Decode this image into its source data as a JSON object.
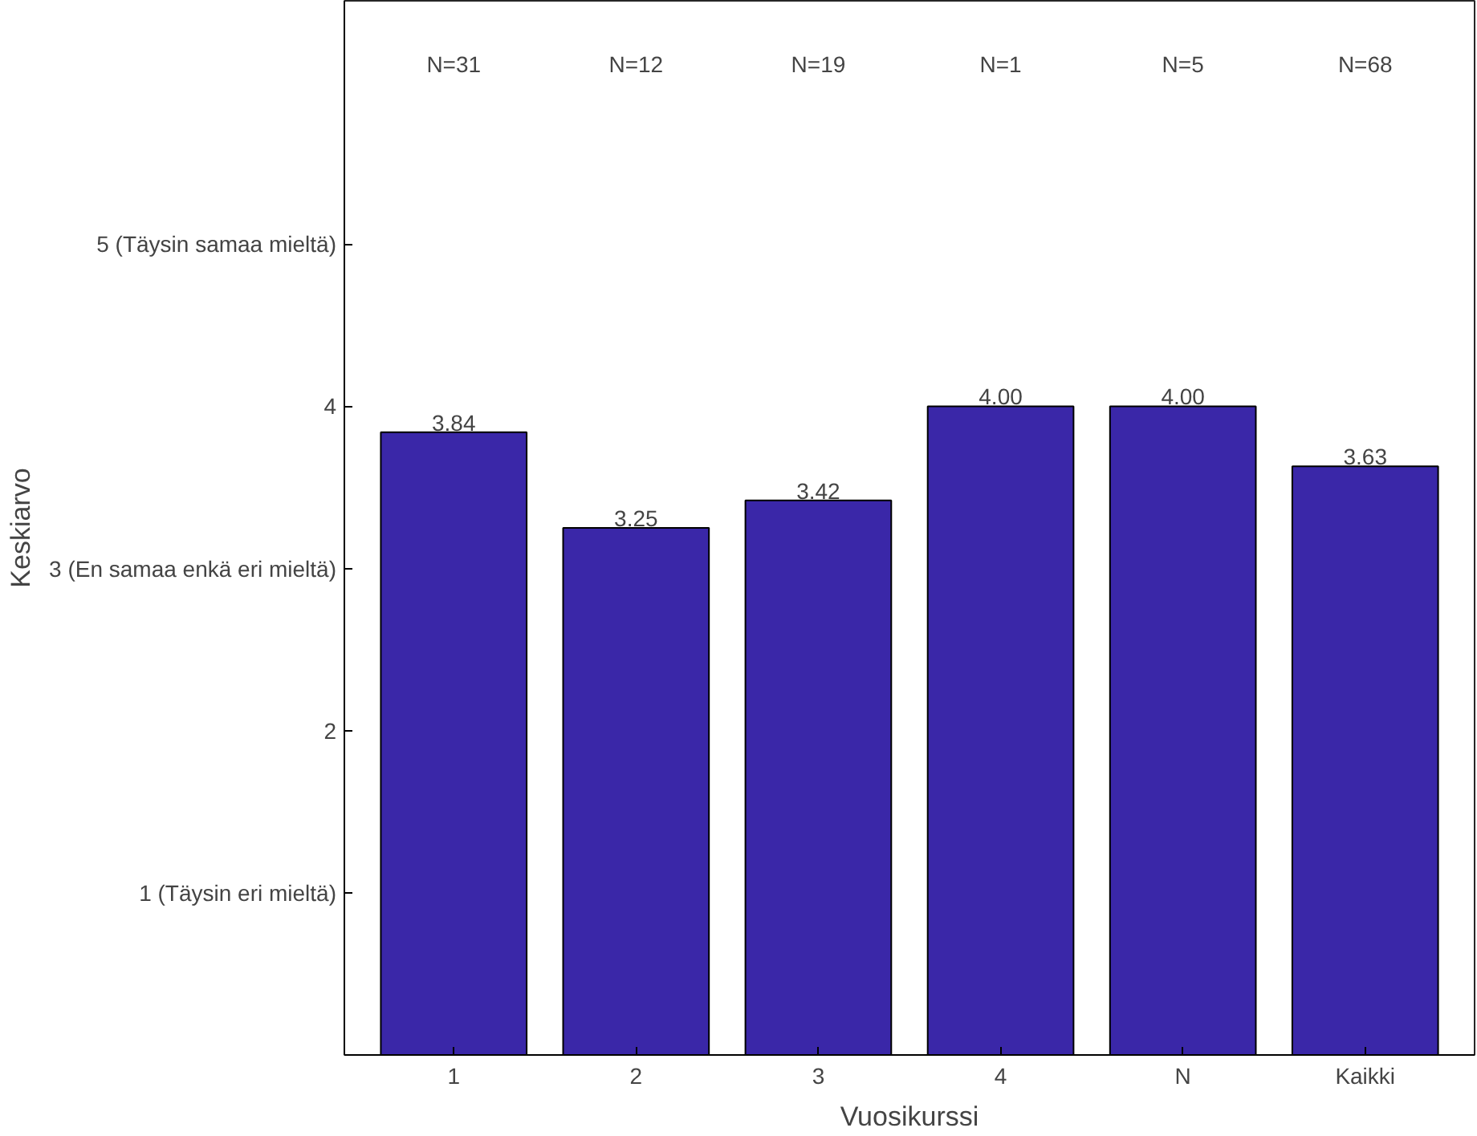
{
  "chart_data": {
    "type": "bar",
    "xlabel": "Vuosikurssi",
    "ylabel": "Keskiarvo",
    "categories": [
      "1",
      "2",
      "3",
      "4",
      "N",
      "Kaikki"
    ],
    "values": [
      3.84,
      3.25,
      3.42,
      4.0,
      4.0,
      3.63
    ],
    "value_labels": [
      "3.84",
      "3.25",
      "3.42",
      "4.00",
      "4.00",
      "3.63"
    ],
    "color": "#3a27a8",
    "grid": false,
    "ylim": [
      0,
      6.5
    ],
    "yticks": [
      {
        "value": 1,
        "label": "1 (Täysin eri mieltä)"
      },
      2,
      {
        "value": 3,
        "label": "3 (En samaa enkä eri mieltä)"
      },
      4,
      {
        "value": 5,
        "label": "5 (Täysin samaa mieltä)"
      }
    ],
    "annotations": [
      "N=31",
      "N=12",
      "N=19",
      "N=1",
      "N=5",
      "N=68"
    ]
  }
}
